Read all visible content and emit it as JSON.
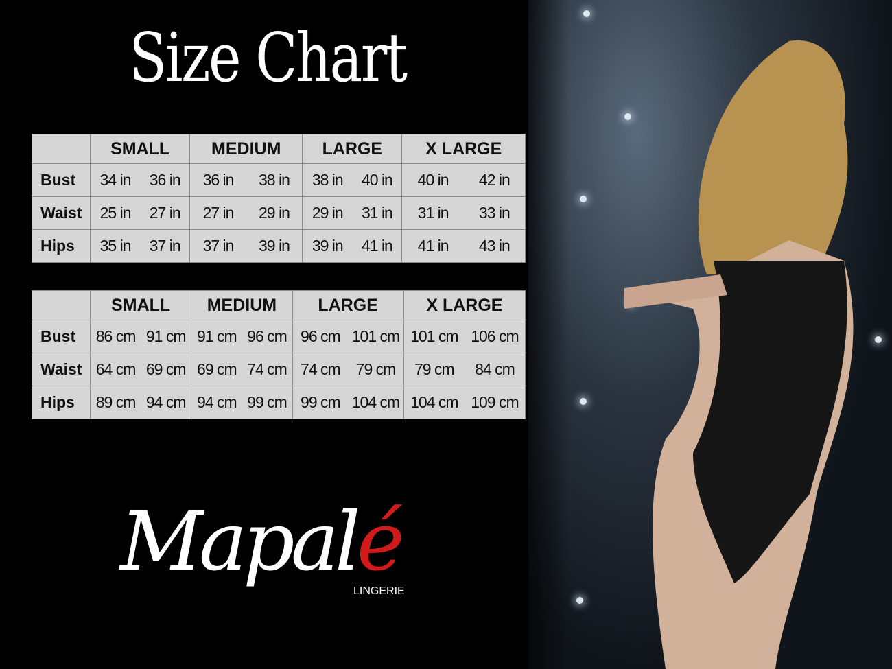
{
  "title": "Size Chart",
  "sizes": [
    "SMALL",
    "MEDIUM",
    "LARGE",
    "X LARGE"
  ],
  "tables": [
    {
      "unit": "in",
      "rows": [
        {
          "label": "Bust",
          "values": [
            "34 in",
            "36 in",
            "36 in",
            "38 in",
            "38 in",
            "40 in",
            "40 in",
            "42 in"
          ]
        },
        {
          "label": "Waist",
          "values": [
            "25 in",
            "27 in",
            "27 in",
            "29 in",
            "29 in",
            "31 in",
            "31 in",
            "33 in"
          ]
        },
        {
          "label": "Hips",
          "values": [
            "35 in",
            "37 in",
            "37 in",
            "39 in",
            "39 in",
            "41 in",
            "41 in",
            "43 in"
          ]
        }
      ]
    },
    {
      "unit": "cm",
      "rows": [
        {
          "label": "Bust",
          "values": [
            "86 cm",
            "91 cm",
            "91 cm",
            "96 cm",
            "96 cm",
            "101 cm",
            "101 cm",
            "106 cm"
          ]
        },
        {
          "label": "Waist",
          "values": [
            "64 cm",
            "69 cm",
            "69 cm",
            "74 cm",
            "74 cm",
            "79  cm",
            "79 cm",
            "84 cm"
          ]
        },
        {
          "label": "Hips",
          "values": [
            "89 cm",
            "94 cm",
            "94 cm",
            "99 cm",
            "99 cm",
            "104 cm",
            "104 cm",
            "109 cm"
          ]
        }
      ]
    }
  ],
  "brand": {
    "name": "Mapalé",
    "name_main": "Mapal",
    "name_accent": "é",
    "tagline": "LINGERIE",
    "accent_color": "#d11b1b"
  },
  "colors": {
    "background": "#000000",
    "table_bg": "#d6d6d6",
    "table_border": "#8a8a8a"
  }
}
